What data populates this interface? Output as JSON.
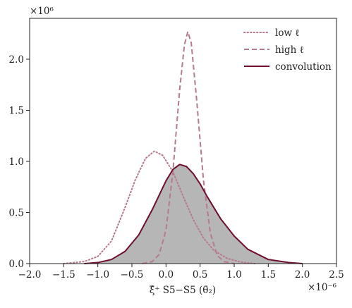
{
  "chart_data": {
    "type": "line",
    "title": "",
    "xlabel": "ξ̂⁺ S5−S5 (θ̄₂)",
    "ylabel": "",
    "x_multiplier_label": "×10⁻⁶",
    "y_multiplier_label": "×10⁶",
    "x_unit_scale": 1e-06,
    "y_unit_scale": 1000000.0,
    "xlim": [
      -2.0,
      2.5
    ],
    "ylim": [
      0.0,
      2.4
    ],
    "x_tick_values": [
      -2.0,
      -1.5,
      -1.0,
      -0.5,
      0.0,
      0.5,
      1.0,
      1.5,
      2.0,
      2.5
    ],
    "x_tick_labels": [
      "−2.0",
      "−1.5",
      "−1.0",
      "−0.5",
      "0.0",
      "0.5",
      "1.0",
      "1.5",
      "2.0",
      "2.5"
    ],
    "y_tick_values": [
      0.0,
      0.5,
      1.0,
      1.5,
      2.0
    ],
    "y_tick_labels": [
      "0.0",
      "0.5",
      "1.0",
      "1.5",
      "2.0"
    ],
    "grid": false,
    "legend_position": "top-right",
    "series": [
      {
        "name": "low ℓ",
        "style": "dotted",
        "color": "#b57a8c",
        "x": [
          -1.5,
          -1.2,
          -1.0,
          -0.8,
          -0.6,
          -0.45,
          -0.3,
          -0.17,
          -0.05,
          0.1,
          0.25,
          0.4,
          0.55,
          0.7,
          0.9,
          1.1,
          1.3
        ],
        "y": [
          0.0,
          0.02,
          0.07,
          0.22,
          0.55,
          0.82,
          1.03,
          1.1,
          1.06,
          0.9,
          0.66,
          0.43,
          0.25,
          0.13,
          0.05,
          0.015,
          0.0
        ]
      },
      {
        "name": "high ℓ",
        "style": "dashed",
        "color": "#b57a8c",
        "x": [
          -0.35,
          -0.2,
          -0.1,
          0.0,
          0.1,
          0.2,
          0.27,
          0.32,
          0.37,
          0.45,
          0.55,
          0.65,
          0.75,
          0.85,
          1.0
        ],
        "y": [
          0.0,
          0.02,
          0.09,
          0.33,
          0.89,
          1.7,
          2.14,
          2.27,
          2.16,
          1.6,
          0.81,
          0.3,
          0.08,
          0.02,
          0.0
        ]
      },
      {
        "name": "convolution",
        "style": "solid",
        "color": "#6e0f30",
        "x": [
          -1.2,
          -1.0,
          -0.8,
          -0.6,
          -0.4,
          -0.2,
          0.0,
          0.1,
          0.2,
          0.3,
          0.4,
          0.5,
          0.6,
          0.8,
          1.0,
          1.2,
          1.5,
          1.8,
          2.0
        ],
        "y": [
          0.0,
          0.01,
          0.04,
          0.12,
          0.28,
          0.53,
          0.81,
          0.92,
          0.97,
          0.95,
          0.88,
          0.78,
          0.66,
          0.44,
          0.27,
          0.14,
          0.04,
          0.01,
          0.0
        ]
      }
    ],
    "histogram": {
      "color": "#9e9e9e",
      "description_hidden": true,
      "x": [
        -1.2,
        -1.0,
        -0.8,
        -0.6,
        -0.4,
        -0.2,
        0.0,
        0.1,
        0.2,
        0.3,
        0.4,
        0.5,
        0.6,
        0.8,
        1.0,
        1.2,
        1.5,
        1.8,
        2.0
      ],
      "y": [
        0.0,
        0.01,
        0.04,
        0.12,
        0.28,
        0.53,
        0.81,
        0.92,
        0.97,
        0.95,
        0.88,
        0.78,
        0.66,
        0.44,
        0.27,
        0.14,
        0.04,
        0.01,
        0.0
      ]
    }
  }
}
